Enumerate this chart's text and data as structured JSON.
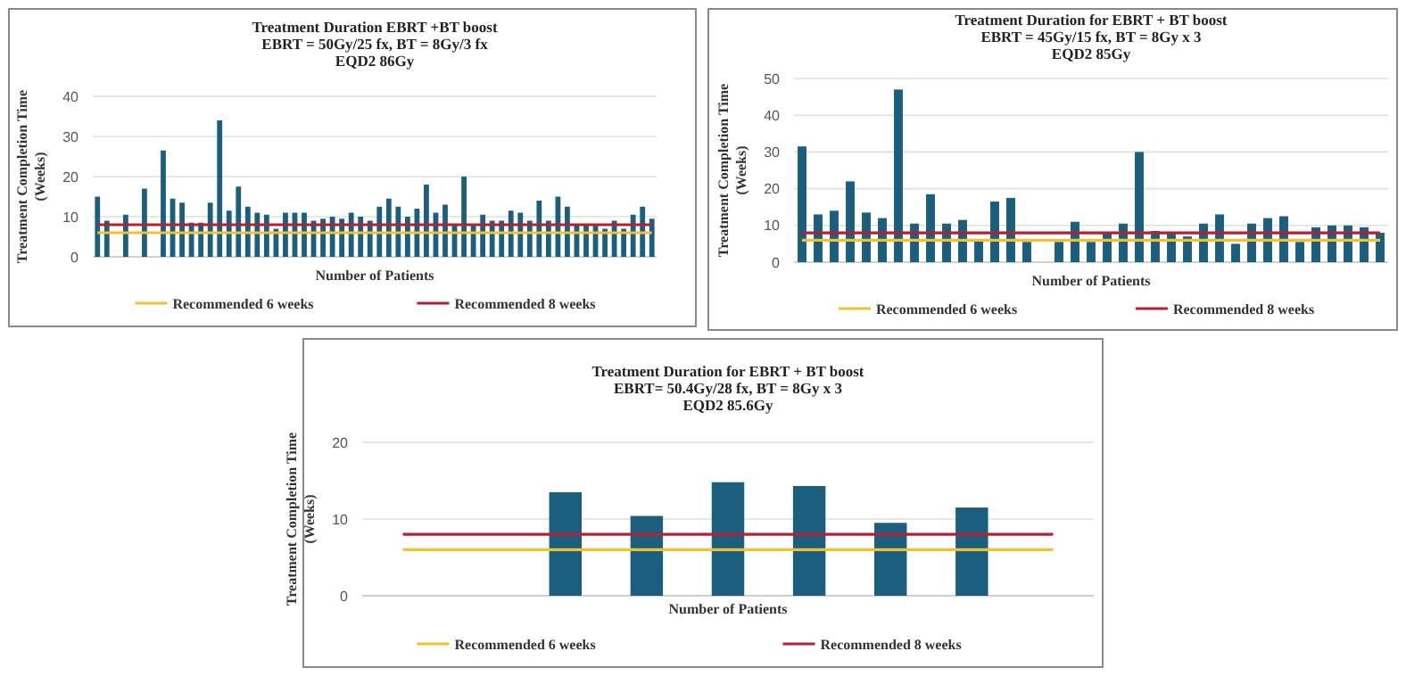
{
  "chart_data": [
    {
      "type": "bar",
      "title": "Treatment Duration EBRT +BT boost\nEBRT = 50Gy/25 fx, BT = 8Gy/3 fx\nEQD2 86Gy",
      "xlabel": "Number of Patients",
      "ylabel": "Treatment Completion Time\n(Weeks)",
      "categories": [
        null,
        null,
        null,
        null,
        null,
        null,
        null,
        null,
        null,
        null,
        null,
        null,
        null,
        null,
        null,
        null,
        null,
        null,
        null,
        null,
        null,
        null,
        null,
        null,
        null,
        null,
        null,
        null,
        null,
        null,
        null,
        null,
        null,
        null,
        null,
        null,
        null,
        null,
        null,
        null,
        null,
        null,
        null,
        null,
        null,
        null,
        null,
        null,
        null,
        null,
        null,
        null,
        null,
        null,
        null,
        null,
        null,
        null,
        null,
        null
      ],
      "ylim": [
        0,
        40
      ],
      "yticks": [
        0,
        10,
        20,
        30,
        40
      ],
      "grid": "y",
      "legend": "bottom",
      "tick_labels": "y",
      "series": [
        {
          "color": "#1b5e7e",
          "values": [
            15,
            9,
            null,
            10.5,
            null,
            17,
            null,
            26.5,
            14.5,
            13.5,
            8.5,
            8.5,
            13.5,
            34,
            11.5,
            17.5,
            12.5,
            11,
            10.5,
            7,
            11,
            11,
            11,
            9,
            9.5,
            10,
            9.5,
            11,
            10,
            9,
            12.5,
            14.5,
            12.5,
            10,
            12,
            18,
            11,
            13,
            8,
            20,
            8,
            10.5,
            9,
            9,
            11.5,
            11,
            9,
            14,
            9,
            15,
            12.5,
            8,
            8,
            8,
            7,
            9,
            7,
            10.5,
            12.5,
            9.5
          ]
        },
        {
          "type": "line",
          "name": "Recommended 6 weeks",
          "color": "#f2c12e",
          "values": [
            6,
            6,
            6,
            6,
            6,
            6,
            6,
            6,
            6,
            6,
            6,
            6,
            6,
            6,
            6,
            6,
            6,
            6,
            6,
            6,
            6,
            6,
            6,
            6,
            6,
            6,
            6,
            6,
            6,
            6,
            6,
            6,
            6,
            6,
            6,
            6,
            6,
            6,
            6,
            6,
            6,
            6,
            6,
            6,
            6,
            6,
            6,
            6,
            6,
            6,
            6,
            6,
            6,
            6,
            6,
            6,
            6,
            6,
            6,
            6
          ]
        },
        {
          "type": "line",
          "name": "Recommended 8 weeks",
          "color": "#b22234",
          "values": [
            8,
            8,
            8,
            8,
            8,
            8,
            8,
            8,
            8,
            8,
            8,
            8,
            8,
            8,
            8,
            8,
            8,
            8,
            8,
            8,
            8,
            8,
            8,
            8,
            8,
            8,
            8,
            8,
            8,
            8,
            8,
            8,
            8,
            8,
            8,
            8,
            8,
            8,
            8,
            8,
            8,
            8,
            8,
            8,
            8,
            8,
            8,
            8,
            8,
            8,
            8,
            8,
            8,
            8,
            8,
            8,
            8,
            8,
            8,
            8
          ]
        }
      ]
    },
    {
      "type": "bar",
      "title": "Treatment Duration for  EBRT + BT boost\nEBRT = 45Gy/15 fx, BT = 8Gy x 3\nEQD2 85Gy",
      "xlabel": "Number of Patients",
      "ylabel": "Treatment Completion Time\n(Weeks)",
      "categories": [
        null,
        null,
        null,
        null,
        null,
        null,
        null,
        null,
        null,
        null,
        null,
        null,
        null,
        null,
        null,
        null,
        null,
        null,
        null,
        null,
        null,
        null,
        null,
        null,
        null,
        null,
        null,
        null,
        null,
        null,
        null,
        null,
        null,
        null,
        null,
        null,
        null
      ],
      "ylim": [
        0,
        50
      ],
      "yticks": [
        0,
        10,
        20,
        30,
        40,
        50
      ],
      "grid": "y",
      "legend": "bottom",
      "tick_labels": "y",
      "series": [
        {
          "color": "#1b5e7e",
          "values": [
            31.5,
            13,
            14,
            22,
            13.5,
            12,
            47,
            10.5,
            18.5,
            10.5,
            11.5,
            6,
            16.5,
            17.5,
            5.5,
            null,
            5.5,
            11,
            5.5,
            8,
            10.5,
            30,
            8.5,
            8,
            7,
            10.5,
            13,
            5,
            10.5,
            12,
            12.5,
            5.5,
            9.5,
            10,
            10,
            9.5,
            8
          ]
        },
        {
          "type": "line",
          "name": "Recommended 6 weeks",
          "color": "#f2c12e",
          "values": [
            6,
            6,
            6,
            6,
            6,
            6,
            6,
            6,
            6,
            6,
            6,
            6,
            6,
            6,
            6,
            6,
            6,
            6,
            6,
            6,
            6,
            6,
            6,
            6,
            6,
            6,
            6,
            6,
            6,
            6,
            6,
            6,
            6,
            6,
            6,
            6,
            6
          ]
        },
        {
          "type": "line",
          "name": "Recommended 8 weeks",
          "color": "#b22234",
          "values": [
            8,
            8,
            8,
            8,
            8,
            8,
            8,
            8,
            8,
            8,
            8,
            8,
            8,
            8,
            8,
            8,
            8,
            8,
            8,
            8,
            8,
            8,
            8,
            8,
            8,
            8,
            8,
            8,
            8,
            8,
            8,
            8,
            8,
            8,
            8,
            8,
            8
          ]
        }
      ]
    },
    {
      "type": "bar",
      "title": "Treatment Duration for EBRT + BT boost\nEBRT= 50.4Gy/28 fx, BT = 8Gy x 3\nEQD2 85.6Gy",
      "xlabel": "Number of Patients",
      "ylabel": "Treatment Completion Time\n(Weeks)",
      "categories": [
        null,
        null,
        null,
        null,
        null,
        null,
        null,
        null,
        null
      ],
      "ylim": [
        0,
        20
      ],
      "yticks": [
        0,
        10,
        20
      ],
      "grid": "y",
      "legend": "bottom",
      "tick_labels": "y",
      "series": [
        {
          "color": "#1b5e7e",
          "values": [
            null,
            null,
            13.5,
            10.4,
            14.8,
            14.3,
            9.5,
            11.5,
            null
          ]
        },
        {
          "type": "line",
          "name": "Recommended 6 weeks",
          "color": "#f2c12e",
          "values": [
            6,
            6,
            6,
            6,
            6,
            6,
            6,
            6,
            6
          ]
        },
        {
          "type": "line",
          "name": "Recommended 8 weeks",
          "color": "#b22234",
          "values": [
            8,
            8,
            8,
            8,
            8,
            8,
            8,
            8,
            8
          ]
        }
      ]
    }
  ]
}
